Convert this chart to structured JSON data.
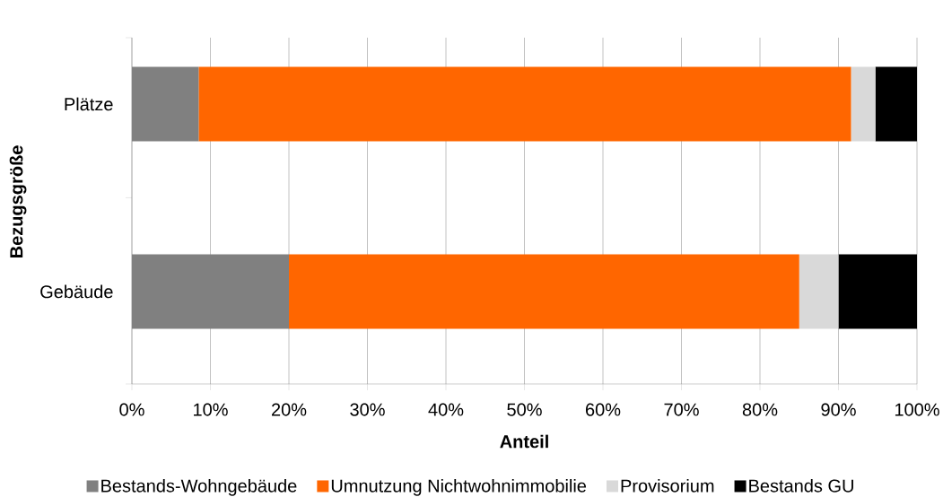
{
  "chart_data": {
    "type": "bar",
    "orientation": "horizontal",
    "stacked": true,
    "xlabel": "Anteil",
    "ylabel": "Bezugsgröße",
    "categories": [
      "Plätze",
      "Gebäude"
    ],
    "series": [
      {
        "name": "Bestands-Wohngebäude",
        "color": "#808080",
        "values": [
          8.5,
          20
        ]
      },
      {
        "name": "Umnutzung Nichtwohnimmobilie",
        "color": "#ff6600",
        "values": [
          83.1,
          65
        ]
      },
      {
        "name": "Provisorium",
        "color": "#d9d9d9",
        "values": [
          3.1,
          5
        ]
      },
      {
        "name": "Bestands GU",
        "color": "#000000",
        "values": [
          5.3,
          10
        ]
      }
    ],
    "xlim": [
      0,
      100
    ],
    "xticks": [
      {
        "value": 0,
        "label": "0%"
      },
      {
        "value": 10,
        "label": "10%"
      },
      {
        "value": 20,
        "label": "20%"
      },
      {
        "value": 30,
        "label": "30%"
      },
      {
        "value": 40,
        "label": "40%"
      },
      {
        "value": 50,
        "label": "50%"
      },
      {
        "value": 60,
        "label": "60%"
      },
      {
        "value": 70,
        "label": "70%"
      },
      {
        "value": 80,
        "label": "80%"
      },
      {
        "value": 90,
        "label": "90%"
      },
      {
        "value": 100,
        "label": "100%"
      }
    ],
    "grid": "x",
    "legend": "bottom"
  }
}
